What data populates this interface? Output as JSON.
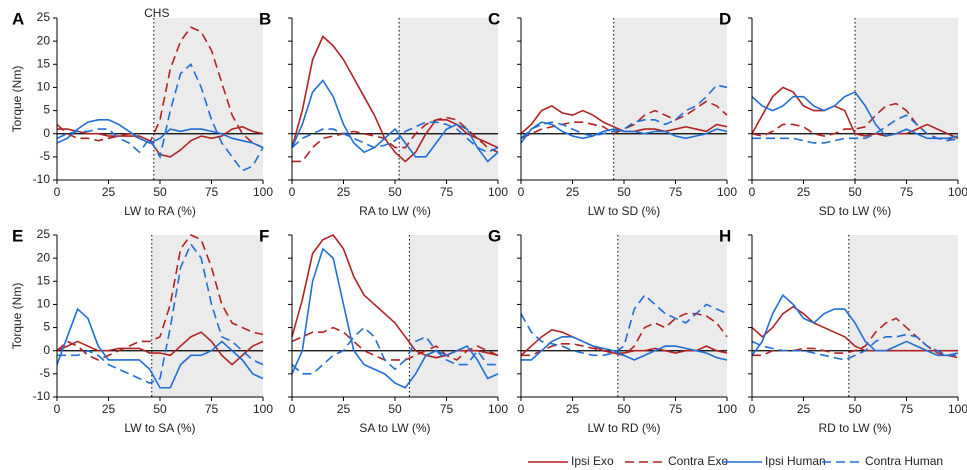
{
  "legend": [
    {
      "name": "Ipsi Exo",
      "color": "#b22222",
      "dash": "none"
    },
    {
      "name": "Contra Exo",
      "color": "#b22222",
      "dash": "9 5"
    },
    {
      "name": "Ipsi Human",
      "color": "#1f6fd6",
      "dash": "none"
    },
    {
      "name": "Contra Human",
      "color": "#1f6fd6",
      "dash": "9 5"
    }
  ],
  "chart_data": [
    {
      "type": "line",
      "letter": "A",
      "xlabel": "LW to RA (%)",
      "ylabel": "Torque (Nm)",
      "annotation": "CHS",
      "transition": 47,
      "xlim": [
        0,
        100
      ],
      "ylim": [
        -10,
        25
      ],
      "xticks": [
        0,
        25,
        50,
        75,
        100
      ],
      "yticks": [
        -10,
        -5,
        0,
        5,
        10,
        15,
        20,
        25
      ],
      "x": [
        0,
        5,
        10,
        15,
        20,
        25,
        30,
        35,
        40,
        45,
        50,
        55,
        60,
        65,
        70,
        75,
        80,
        85,
        90,
        95,
        100
      ],
      "series": [
        {
          "values": [
            1,
            1,
            0.5,
            0,
            0,
            -0.5,
            -0.5,
            -0.5,
            -0.5,
            -1.5,
            -4.5,
            -5,
            -3.5,
            -1.5,
            -0.5,
            -1,
            -0.5,
            1,
            1.5,
            0.5,
            0
          ]
        },
        {
          "values": [
            2,
            0,
            -1,
            -1,
            -1.5,
            -1,
            -0.5,
            0,
            -1,
            -2,
            3,
            14,
            20,
            23,
            22,
            18,
            11,
            4,
            0,
            -2,
            -3
          ]
        },
        {
          "values": [
            -2,
            -1,
            1,
            2.5,
            3,
            3,
            2,
            0.5,
            -1,
            -2,
            -1,
            1,
            0.5,
            1,
            1,
            0.5,
            0,
            -1,
            -1.5,
            -2,
            -3
          ]
        },
        {
          "values": [
            -1,
            0,
            0.5,
            0.5,
            1,
            1,
            -1,
            -2,
            -4,
            -1,
            -5,
            5,
            13,
            15,
            10,
            3,
            -2,
            -5,
            -8,
            -7,
            -3
          ]
        }
      ]
    },
    {
      "type": "line",
      "letter": "B",
      "xlabel": "RA to LW (%)",
      "transition": 52,
      "xlim": [
        0,
        100
      ],
      "ylim": [
        -10,
        25
      ],
      "xticks": [
        0,
        25,
        50,
        75,
        100
      ],
      "yticks": [
        -10,
        -5,
        0,
        5,
        10,
        15,
        20,
        25
      ],
      "x": [
        0,
        5,
        10,
        15,
        20,
        25,
        30,
        35,
        40,
        45,
        50,
        55,
        60,
        65,
        70,
        75,
        80,
        85,
        90,
        95,
        100
      ],
      "series": [
        {
          "values": [
            -3,
            5,
            16,
            21,
            19,
            16,
            12,
            8,
            4,
            -1,
            -4,
            -6,
            -4,
            0,
            3,
            3,
            2,
            0,
            -1,
            -2,
            -3
          ]
        },
        {
          "values": [
            -6,
            -6,
            -3,
            -1,
            -0.5,
            0,
            0.5,
            0,
            -0.5,
            -1,
            -3,
            -3,
            0,
            2,
            3,
            3.5,
            3,
            1,
            -1,
            -3,
            -4
          ]
        },
        {
          "values": [
            -3,
            2,
            9,
            11.5,
            8,
            2,
            -2,
            -4,
            -3,
            -1,
            1,
            -2,
            -5,
            -5,
            -2,
            1,
            2,
            1,
            -3,
            -6,
            -4
          ]
        },
        {
          "values": [
            -3,
            -1,
            0,
            1,
            1,
            0,
            -1,
            -2,
            -3,
            -2.5,
            -1.5,
            0.5,
            1.5,
            2.5,
            2.5,
            2,
            1,
            -1,
            -3,
            -4,
            -3
          ]
        }
      ]
    },
    {
      "type": "line",
      "letter": "C",
      "xlabel": "LW to SD (%)",
      "transition": 45,
      "xlim": [
        0,
        100
      ],
      "ylim": [
        -10,
        25
      ],
      "xticks": [
        0,
        25,
        50,
        75,
        100
      ],
      "yticks": [
        -10,
        -5,
        0,
        5,
        10,
        15,
        20,
        25
      ],
      "x": [
        0,
        5,
        10,
        15,
        20,
        25,
        30,
        35,
        40,
        45,
        50,
        55,
        60,
        65,
        70,
        75,
        80,
        85,
        90,
        95,
        100
      ],
      "series": [
        {
          "values": [
            0,
            2,
            5,
            6,
            4.5,
            4,
            5,
            4,
            2.5,
            1.5,
            0.5,
            0.5,
            1,
            1,
            0.5,
            1,
            1.5,
            1,
            0.5,
            2,
            1.5
          ]
        },
        {
          "values": [
            -1,
            0,
            1,
            1.5,
            2,
            2.5,
            2.5,
            2,
            1.5,
            0,
            1,
            2,
            4,
            5,
            4,
            3,
            4,
            5.5,
            7,
            6,
            4
          ]
        },
        {
          "values": [
            -2,
            1,
            2.5,
            2,
            0.5,
            -0.5,
            -1,
            -0.5,
            0.5,
            1,
            0.5,
            0.5,
            0,
            0.5,
            0.5,
            -0.5,
            -1,
            -0.5,
            0,
            1,
            0.5
          ]
        },
        {
          "values": [
            -1,
            1,
            2,
            2.5,
            2,
            1,
            0,
            -0.5,
            0,
            0.5,
            1,
            2.5,
            3,
            3,
            2,
            3,
            5,
            6,
            8,
            10.5,
            10
          ]
        }
      ]
    },
    {
      "type": "line",
      "letter": "D",
      "xlabel": "SD to LW (%)",
      "transition": 50,
      "xlim": [
        0,
        100
      ],
      "ylim": [
        -10,
        25
      ],
      "xticks": [
        0,
        25,
        50,
        75,
        100
      ],
      "yticks": [
        -10,
        -5,
        0,
        5,
        10,
        15,
        20,
        25
      ],
      "x": [
        0,
        5,
        10,
        15,
        20,
        25,
        30,
        35,
        40,
        45,
        50,
        55,
        60,
        65,
        70,
        75,
        80,
        85,
        90,
        95,
        100
      ],
      "series": [
        {
          "values": [
            0,
            4,
            8,
            10,
            9,
            6,
            5,
            5,
            6,
            5,
            0,
            -0.5,
            0,
            -0.5,
            0,
            0,
            1,
            2,
            1,
            0,
            -1
          ]
        },
        {
          "values": [
            0,
            -0.5,
            0.5,
            2,
            2,
            1.5,
            0,
            -0.5,
            0,
            1,
            1,
            1.5,
            4,
            6,
            6.5,
            5,
            2,
            0,
            -1,
            -1,
            -1.5
          ]
        },
        {
          "values": [
            8,
            6,
            5,
            6,
            8,
            8,
            6,
            5,
            6,
            8,
            9,
            6,
            2,
            -0.5,
            0,
            1,
            0,
            -1,
            -1,
            -1,
            -0.5
          ]
        },
        {
          "values": [
            -1,
            -1,
            -1,
            -1,
            -1,
            -1.5,
            -2,
            -2,
            -1.5,
            -1,
            -1,
            -1,
            0,
            1.5,
            3,
            4,
            2,
            0,
            -1,
            -1.5,
            -1
          ]
        }
      ]
    },
    {
      "type": "line",
      "letter": "E",
      "xlabel": "LW to SA (%)",
      "ylabel": "Torque (Nm)",
      "transition": 46,
      "xlim": [
        0,
        100
      ],
      "ylim": [
        -10,
        25
      ],
      "xticks": [
        0,
        25,
        50,
        75,
        100
      ],
      "yticks": [
        -10,
        -5,
        0,
        5,
        10,
        15,
        20,
        25
      ],
      "x": [
        0,
        5,
        10,
        15,
        20,
        25,
        30,
        35,
        40,
        45,
        50,
        55,
        60,
        65,
        70,
        75,
        80,
        85,
        90,
        95,
        100
      ],
      "series": [
        {
          "values": [
            0,
            1,
            2,
            1,
            0,
            0,
            0.5,
            0.5,
            0.5,
            -0.5,
            -0.5,
            -1,
            1,
            3,
            4,
            2,
            -1,
            -3,
            -1,
            1,
            2
          ]
        },
        {
          "values": [
            0,
            2,
            1,
            -1,
            -2,
            -1,
            0,
            1,
            2,
            2,
            3,
            10,
            22,
            25,
            24,
            18,
            10,
            6,
            5,
            4,
            3.5
          ]
        },
        {
          "values": [
            -3,
            3,
            9,
            7,
            1,
            -2,
            -2,
            -2,
            -2,
            -4,
            -8,
            -8,
            -3,
            -1,
            -1,
            0,
            2,
            0,
            -2,
            -5,
            -6
          ]
        },
        {
          "values": [
            -1,
            -1,
            -1,
            0,
            -1,
            -3,
            -4,
            -5,
            -6,
            -7,
            -6,
            5,
            18,
            23,
            20,
            10,
            3,
            2,
            0,
            -2,
            -3
          ]
        }
      ]
    },
    {
      "type": "line",
      "letter": "F",
      "xlabel": "SA to LW (%)",
      "transition": 57,
      "xlim": [
        0,
        100
      ],
      "ylim": [
        -10,
        25
      ],
      "xticks": [
        0,
        25,
        50,
        75,
        100
      ],
      "yticks": [
        -10,
        -5,
        0,
        5,
        10,
        15,
        20,
        25
      ],
      "x": [
        0,
        5,
        10,
        15,
        20,
        25,
        30,
        35,
        40,
        45,
        50,
        55,
        60,
        65,
        70,
        75,
        80,
        85,
        90,
        95,
        100
      ],
      "series": [
        {
          "values": [
            3,
            11,
            21,
            24,
            25,
            22,
            16,
            12,
            10,
            8,
            6,
            3,
            0,
            -1,
            -1.5,
            -1,
            0,
            0,
            0,
            -0.5,
            -1
          ]
        },
        {
          "values": [
            2,
            3,
            4,
            4,
            5,
            4,
            2,
            0,
            -1,
            -2,
            -2,
            -2,
            -1,
            0,
            1,
            -1,
            -2,
            0,
            1,
            0,
            -1
          ]
        },
        {
          "values": [
            -5,
            0,
            15,
            22,
            20,
            10,
            0,
            -3,
            -4,
            -5,
            -7,
            -8,
            -5,
            -1,
            0,
            -1,
            0,
            1,
            -2,
            -6,
            -5
          ]
        },
        {
          "values": [
            -3,
            -5,
            -5,
            -3,
            -1,
            0,
            3,
            5,
            3,
            -2,
            -4,
            -2,
            2,
            3,
            0,
            -2,
            -3,
            -3,
            0,
            -3,
            -3
          ]
        }
      ]
    },
    {
      "type": "line",
      "letter": "G",
      "xlabel": "LW to RD (%)",
      "transition": 47,
      "xlim": [
        0,
        100
      ],
      "ylim": [
        -10,
        25
      ],
      "xticks": [
        0,
        25,
        50,
        75,
        100
      ],
      "yticks": [
        -10,
        -5,
        0,
        5,
        10,
        15,
        20,
        25
      ],
      "x": [
        0,
        5,
        10,
        15,
        20,
        25,
        30,
        35,
        40,
        45,
        50,
        55,
        60,
        65,
        70,
        75,
        80,
        85,
        90,
        95,
        100
      ],
      "series": [
        {
          "values": [
            -1,
            1,
            3,
            4.5,
            4,
            3,
            2,
            1,
            0,
            -0.5,
            -0.5,
            0,
            0,
            0.5,
            0,
            -0.5,
            0,
            0,
            1,
            0,
            -0.5
          ]
        },
        {
          "values": [
            -1,
            -1,
            0,
            1,
            1.5,
            1.5,
            1,
            0.5,
            0,
            -0.5,
            -1,
            1,
            5,
            6,
            5,
            7,
            8,
            8,
            7.5,
            6,
            3
          ]
        },
        {
          "values": [
            -2,
            -2,
            0,
            2,
            3,
            3,
            2,
            1,
            0.5,
            0,
            -1,
            -2,
            -1,
            0,
            1,
            1,
            0.5,
            0,
            -0.5,
            -1.5,
            -2
          ]
        },
        {
          "values": [
            8,
            4,
            2,
            1.5,
            1,
            0,
            -0.5,
            -1,
            -1,
            -0.5,
            1,
            9,
            12,
            10,
            8,
            7,
            6,
            8,
            10,
            9,
            8
          ]
        }
      ]
    },
    {
      "type": "line",
      "letter": "H",
      "xlabel": "RD to LW (%)",
      "transition": 47,
      "xlim": [
        0,
        100
      ],
      "ylim": [
        -10,
        25
      ],
      "xticks": [
        0,
        25,
        50,
        75,
        100
      ],
      "yticks": [
        -10,
        -5,
        0,
        5,
        10,
        15,
        20,
        25
      ],
      "x": [
        0,
        5,
        10,
        15,
        20,
        25,
        30,
        35,
        40,
        45,
        50,
        55,
        60,
        65,
        70,
        75,
        80,
        85,
        90,
        95,
        100
      ],
      "series": [
        {
          "values": [
            5,
            3,
            5,
            8,
            9.5,
            8,
            6,
            5,
            4,
            3,
            1,
            0,
            0,
            0,
            0,
            0,
            0,
            0,
            0,
            0,
            0
          ]
        },
        {
          "values": [
            -1,
            -1,
            0,
            0,
            0,
            0.5,
            0.5,
            0,
            -0.5,
            -0.5,
            0,
            1,
            4,
            6,
            7,
            5,
            3,
            1,
            -0.5,
            -1,
            -1.5
          ]
        },
        {
          "values": [
            -1,
            2,
            8,
            12,
            10,
            7,
            6,
            8,
            9,
            9,
            6,
            2,
            0,
            0,
            1,
            2,
            1,
            0,
            -1,
            -1,
            -0.5
          ]
        },
        {
          "values": [
            2,
            1,
            0.5,
            0,
            0,
            0,
            -0.5,
            -1,
            -1.5,
            -2,
            -1,
            0,
            2,
            3,
            3,
            3.5,
            3,
            1,
            0,
            -1,
            -1
          ]
        }
      ]
    }
  ]
}
